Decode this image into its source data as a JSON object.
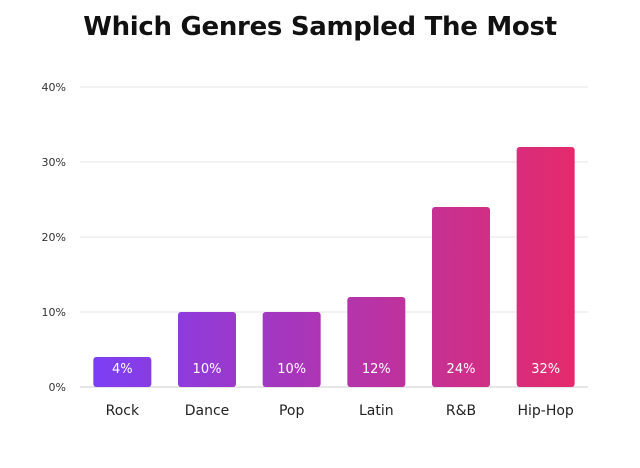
{
  "chart_data": {
    "type": "bar",
    "title": "Which Genres Sampled The Most",
    "xlabel": "",
    "ylabel": "",
    "categories": [
      "Rock",
      "Dance",
      "Pop",
      "Latin",
      "R&B",
      "Hip-Hop"
    ],
    "values": [
      4,
      10,
      10,
      12,
      24,
      32
    ],
    "value_labels": [
      "4%",
      "10%",
      "10%",
      "12%",
      "24%",
      "32%"
    ],
    "y_ticks": [
      0,
      10,
      20,
      30,
      40
    ],
    "y_tick_labels": [
      "0%",
      "10%",
      "20%",
      "30%",
      "40%"
    ],
    "ylim": [
      0,
      40
    ],
    "grid": true,
    "legend": "none",
    "colors": {
      "gradient_start": "#7b3ff5",
      "gradient_end": "#e62a6a",
      "gridline": "#e5e5e5",
      "axis": "#cccccc"
    }
  }
}
